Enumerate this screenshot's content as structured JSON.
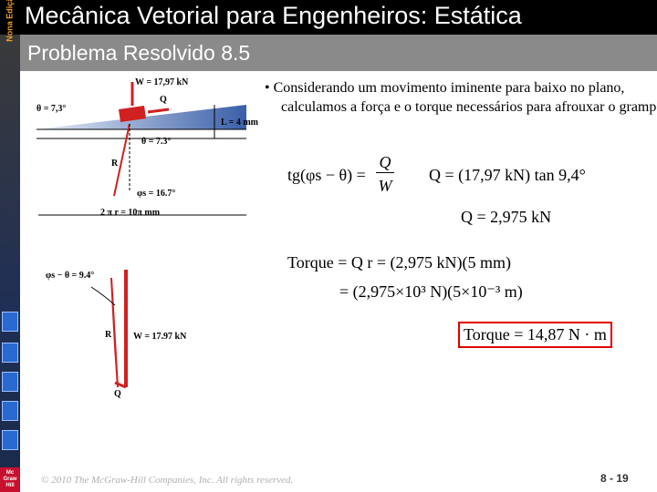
{
  "header": {
    "edition": "Nona Edição",
    "title": "Mecânica Vetorial para Engenheiros: Estática",
    "subtitle": "Problema Resolvido 8.5"
  },
  "figure_top": {
    "labels": [
      "W = 17,97 kN",
      "Q",
      "θ = 7,3°",
      "L = 4 mm",
      "θ = 7.3°",
      "R",
      "φs = 16.7°",
      "2 π r = 10π mm"
    ]
  },
  "figure_bottom": {
    "labels": [
      "φs − θ = 9.4°",
      "R",
      "W = 17.97 kN",
      "Q"
    ]
  },
  "bullet": "• Considerando um movimento iminente para baixo no plano, calculamos a força e o torque necessários para afrouxar o grampo.",
  "equations": {
    "eq1_lhs": "tg(φs − θ) =",
    "eq1_num": "Q",
    "eq1_den": "W",
    "eq2": "Q = (17,97 kN) tan 9,4°",
    "eq3": "Q = 2,975 kN",
    "eq4": "Torque = Q r = (2,975 kN)(5 mm)",
    "eq5": "= (2,975×10³ N)(5×10⁻³ m)",
    "eq6": "Torque = 14,87 N · m"
  },
  "logo": "Mc Graw Hill",
  "footer": {
    "copyright": "© 2010 The McGraw-Hill Companies, Inc. All rights reserved.",
    "page": "8 - 19"
  }
}
